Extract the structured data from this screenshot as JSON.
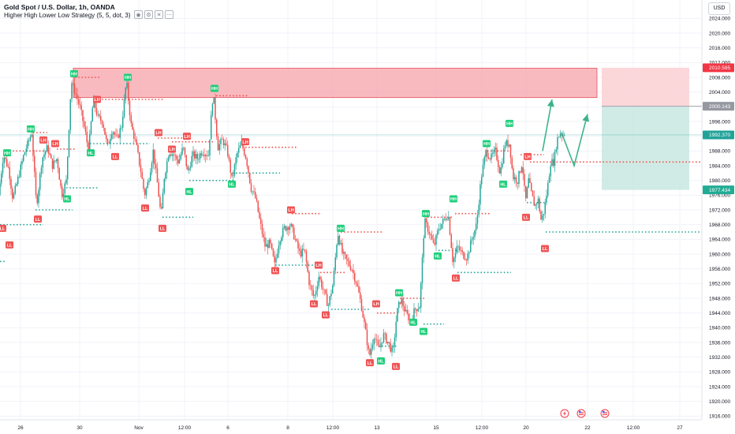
{
  "header": {
    "title": "Gold Spot / U.S. Dollar, 1h, OANDA",
    "indicator": "Higher High Lower Low Strategy (5, 5, dot, 3)"
  },
  "currency_button": "USD",
  "colors": {
    "up": "#26a69a",
    "down": "#ef5350",
    "resistance_zone": "#f7a3aa",
    "stop_zone": "#fbd0d4",
    "target_zone": "#c8e8e0",
    "arrow": "#3cb38a",
    "hh_badge": "#1fcf7a",
    "ll_badge": "#f05454",
    "last_price_badge": "#22a39a"
  },
  "icons": [
    "eye-icon",
    "gear-icon",
    "close-icon",
    "more-icon",
    "flash-icon",
    "us-flag-icon"
  ],
  "chart_data": {
    "type": "candlestick",
    "symbol": "Gold Spot / U.S. Dollar",
    "interval": "1h",
    "y_axis": {
      "ticks": [
        1916,
        1920,
        1924,
        1928,
        1932,
        1936,
        1940,
        1944,
        1948,
        1952,
        1956,
        1960,
        1964,
        1968,
        1972,
        1976,
        1980,
        1984,
        1988,
        1992,
        1996,
        2000,
        2004,
        2008,
        2012,
        2016,
        2020,
        2024
      ],
      "tick_labels": [
        "1916.000",
        "1920.000",
        "1924.000",
        "1928.000",
        "1932.000",
        "1936.000",
        "1940.000",
        "1944.000",
        "1948.000",
        "1952.000",
        "1956.000",
        "1960.000",
        "1964.000",
        "1968.000",
        "1972.000",
        "1976.000",
        "1980.000",
        "1984.000",
        "1988.000",
        "1992.000",
        "1996.000",
        "2000.000",
        "2004.000",
        "2008.000",
        "2012.000",
        "2016.000",
        "2020.000",
        "2024.000"
      ],
      "range": [
        1915,
        2029
      ]
    },
    "x_axis": {
      "labels": [
        {
          "text": "26",
          "t": 26
        },
        {
          "text": "30",
          "t": 101
        },
        {
          "text": "Nov",
          "t": 176
        },
        {
          "text": "12:00",
          "t": 234
        },
        {
          "text": "6",
          "t": 289
        },
        {
          "text": "8",
          "t": 365
        },
        {
          "text": "12:00",
          "t": 422
        },
        {
          "text": "13",
          "t": 478
        },
        {
          "text": "15",
          "t": 553
        },
        {
          "text": "12:00",
          "t": 611
        },
        {
          "text": "20",
          "t": 667
        },
        {
          "text": "22",
          "t": 745
        },
        {
          "text": "12:00",
          "t": 803
        },
        {
          "text": "27",
          "t": 862
        }
      ],
      "range": [
        0,
        890
      ]
    },
    "price_path": [
      [
        0,
        1976
      ],
      [
        6,
        1987
      ],
      [
        13,
        1983
      ],
      [
        18,
        1975
      ],
      [
        24,
        1980
      ],
      [
        32,
        1987
      ],
      [
        37,
        1990
      ],
      [
        42,
        1993
      ],
      [
        48,
        1973
      ],
      [
        55,
        1986
      ],
      [
        62,
        1989
      ],
      [
        68,
        1984
      ],
      [
        74,
        1986
      ],
      [
        80,
        1976
      ],
      [
        86,
        1980
      ],
      [
        92,
        2007
      ],
      [
        97,
        2004
      ],
      [
        103,
        2000
      ],
      [
        110,
        1993
      ],
      [
        114,
        1988
      ],
      [
        120,
        2002
      ],
      [
        126,
        1997
      ],
      [
        132,
        1996
      ],
      [
        138,
        1989
      ],
      [
        144,
        1994
      ],
      [
        150,
        1991
      ],
      [
        156,
        1995
      ],
      [
        162,
        2007
      ],
      [
        168,
        1995
      ],
      [
        174,
        1990
      ],
      [
        180,
        1983
      ],
      [
        185,
        1976
      ],
      [
        190,
        1980
      ],
      [
        196,
        1988
      ],
      [
        202,
        1978
      ],
      [
        206,
        1970
      ],
      [
        210,
        1981
      ],
      [
        216,
        1988
      ],
      [
        222,
        1987
      ],
      [
        228,
        1985
      ],
      [
        234,
        1989
      ],
      [
        240,
        1982
      ],
      [
        246,
        1987
      ],
      [
        252,
        1986
      ],
      [
        258,
        1988
      ],
      [
        266,
        1987
      ],
      [
        272,
        2004
      ],
      [
        278,
        1989
      ],
      [
        284,
        1991
      ],
      [
        290,
        1988
      ],
      [
        296,
        1980
      ],
      [
        302,
        1987
      ],
      [
        308,
        1990
      ],
      [
        314,
        1986
      ],
      [
        320,
        1978
      ],
      [
        326,
        1975
      ],
      [
        332,
        1968
      ],
      [
        338,
        1962
      ],
      [
        344,
        1963
      ],
      [
        350,
        1957
      ],
      [
        356,
        1964
      ],
      [
        362,
        1967
      ],
      [
        370,
        1968
      ],
      [
        376,
        1964
      ],
      [
        382,
        1960
      ],
      [
        388,
        1961
      ],
      [
        394,
        1952
      ],
      [
        400,
        1948
      ],
      [
        406,
        1954
      ],
      [
        412,
        1950
      ],
      [
        418,
        1946
      ],
      [
        424,
        1952
      ],
      [
        430,
        1966
      ],
      [
        436,
        1960
      ],
      [
        442,
        1958
      ],
      [
        448,
        1956
      ],
      [
        454,
        1952
      ],
      [
        460,
        1946
      ],
      [
        466,
        1938
      ],
      [
        470,
        1932
      ],
      [
        476,
        1938
      ],
      [
        482,
        1934
      ],
      [
        488,
        1938
      ],
      [
        494,
        1936
      ],
      [
        500,
        1933
      ],
      [
        505,
        1944
      ],
      [
        510,
        1948
      ],
      [
        516,
        1944
      ],
      [
        522,
        1942
      ],
      [
        528,
        1945
      ],
      [
        534,
        1946
      ],
      [
        540,
        1969
      ],
      [
        546,
        1966
      ],
      [
        552,
        1962
      ],
      [
        558,
        1967
      ],
      [
        564,
        1969
      ],
      [
        570,
        1971
      ],
      [
        576,
        1958
      ],
      [
        582,
        1962
      ],
      [
        588,
        1960
      ],
      [
        594,
        1959
      ],
      [
        600,
        1964
      ],
      [
        606,
        1968
      ],
      [
        612,
        1981
      ],
      [
        618,
        1988
      ],
      [
        624,
        1986
      ],
      [
        630,
        1988
      ],
      [
        636,
        1982
      ],
      [
        642,
        1990
      ],
      [
        648,
        1990
      ],
      [
        652,
        1981
      ],
      [
        658,
        1980
      ],
      [
        664,
        1985
      ],
      [
        668,
        1974
      ],
      [
        672,
        1980
      ],
      [
        676,
        1976
      ],
      [
        680,
        1973
      ],
      [
        684,
        1975
      ],
      [
        688,
        1969
      ],
      [
        692,
        1972
      ],
      [
        696,
        1978
      ],
      [
        700,
        1985
      ],
      [
        704,
        1985
      ],
      [
        708,
        1991
      ],
      [
        712,
        1993
      ],
      [
        716,
        1992.37
      ]
    ],
    "pivot_labels": [
      {
        "text": "HH",
        "t": 9,
        "price": 1987.5,
        "side": "above"
      },
      {
        "text": "LL",
        "t": 3,
        "price": 1967,
        "side": "below"
      },
      {
        "text": "LL",
        "t": 12,
        "price": 1962.5,
        "side": "below"
      },
      {
        "text": "HH",
        "t": 39,
        "price": 1994,
        "side": "above"
      },
      {
        "text": "LH",
        "t": 55,
        "price": 1991,
        "side": "above"
      },
      {
        "text": "LH",
        "t": 70,
        "price": 1990,
        "side": "above"
      },
      {
        "text": "LL",
        "t": 48,
        "price": 1969.5,
        "side": "below"
      },
      {
        "text": "HL",
        "t": 85,
        "price": 1975,
        "side": "below"
      },
      {
        "text": "HH",
        "t": 94,
        "price": 2009,
        "side": "above"
      },
      {
        "text": "LH",
        "t": 123,
        "price": 2002,
        "side": "above"
      },
      {
        "text": "HL",
        "t": 115,
        "price": 1987.5,
        "side": "below"
      },
      {
        "text": "HH",
        "t": 162,
        "price": 2008,
        "side": "above"
      },
      {
        "text": "LL",
        "t": 146,
        "price": 1986.5,
        "side": "below"
      },
      {
        "text": "LH",
        "t": 201,
        "price": 1993,
        "side": "above"
      },
      {
        "text": "LH",
        "t": 218,
        "price": 1988.5,
        "side": "above"
      },
      {
        "text": "LH",
        "t": 237,
        "price": 1992,
        "side": "above"
      },
      {
        "text": "LL",
        "t": 184,
        "price": 1972.5,
        "side": "below"
      },
      {
        "text": "LL",
        "t": 206,
        "price": 1967,
        "side": "below"
      },
      {
        "text": "HL",
        "t": 240,
        "price": 1977,
        "side": "below"
      },
      {
        "text": "HH",
        "t": 272,
        "price": 2005,
        "side": "above"
      },
      {
        "text": "HL",
        "t": 294,
        "price": 1979,
        "side": "below"
      },
      {
        "text": "LH",
        "t": 311,
        "price": 1990.5,
        "side": "above"
      },
      {
        "text": "LH",
        "t": 369,
        "price": 1972,
        "side": "above"
      },
      {
        "text": "LL",
        "t": 349,
        "price": 1955.5,
        "side": "below"
      },
      {
        "text": "HH",
        "t": 432,
        "price": 1967,
        "side": "above"
      },
      {
        "text": "LH",
        "t": 404,
        "price": 1957,
        "side": "above"
      },
      {
        "text": "LL",
        "t": 398,
        "price": 1946.5,
        "side": "below"
      },
      {
        "text": "LL",
        "t": 413,
        "price": 1943.5,
        "side": "below"
      },
      {
        "text": "LH",
        "t": 477,
        "price": 1946.5,
        "side": "above"
      },
      {
        "text": "HH",
        "t": 506,
        "price": 1949.5,
        "side": "above"
      },
      {
        "text": "LL",
        "t": 469,
        "price": 1930.5,
        "side": "below"
      },
      {
        "text": "HL",
        "t": 483,
        "price": 1931,
        "side": "below"
      },
      {
        "text": "LL",
        "t": 502,
        "price": 1929.5,
        "side": "below"
      },
      {
        "text": "HL",
        "t": 524,
        "price": 1941.5,
        "side": "below"
      },
      {
        "text": "HL",
        "t": 537,
        "price": 1939,
        "side": "below"
      },
      {
        "text": "HH",
        "t": 540,
        "price": 1971,
        "side": "above"
      },
      {
        "text": "HL",
        "t": 555,
        "price": 1959.5,
        "side": "below"
      },
      {
        "text": "HH",
        "t": 575,
        "price": 1975,
        "side": "above"
      },
      {
        "text": "LL",
        "t": 578,
        "price": 1953.5,
        "side": "below"
      },
      {
        "text": "HH",
        "t": 617,
        "price": 1990,
        "side": "above"
      },
      {
        "text": "HH",
        "t": 646,
        "price": 1995.5,
        "side": "above"
      },
      {
        "text": "HL",
        "t": 638,
        "price": 1979,
        "side": "below"
      },
      {
        "text": "LH",
        "t": 669,
        "price": 1986.5,
        "side": "above"
      },
      {
        "text": "LL",
        "t": 667,
        "price": 1970,
        "side": "below"
      },
      {
        "text": "LL",
        "t": 691,
        "price": 1961.5,
        "side": "below"
      }
    ],
    "dotted_levels": [
      {
        "price": 1988,
        "t0": 12,
        "t1": 62,
        "color": "red"
      },
      {
        "price": 1968,
        "t0": 0,
        "t1": 55,
        "color": "green"
      },
      {
        "price": 1993,
        "t0": 42,
        "t1": 60,
        "color": "red"
      },
      {
        "price": 1972,
        "t0": 45,
        "t1": 92,
        "color": "green"
      },
      {
        "price": 1988.5,
        "t0": 72,
        "t1": 96,
        "color": "red"
      },
      {
        "price": 1978,
        "t0": 84,
        "t1": 124,
        "color": "green"
      },
      {
        "price": 2008,
        "t0": 95,
        "t1": 128,
        "color": "red"
      },
      {
        "price": 2002,
        "t0": 125,
        "t1": 208,
        "color": "red"
      },
      {
        "price": 1990,
        "t0": 114,
        "t1": 190,
        "color": "green"
      },
      {
        "price": 1991.5,
        "t0": 200,
        "t1": 240,
        "color": "red"
      },
      {
        "price": 1990.5,
        "t0": 218,
        "t1": 270,
        "color": "red"
      },
      {
        "price": 1970,
        "t0": 206,
        "t1": 245,
        "color": "green"
      },
      {
        "price": 1980,
        "t0": 240,
        "t1": 298,
        "color": "green"
      },
      {
        "price": 2003,
        "t0": 274,
        "t1": 316,
        "color": "red"
      },
      {
        "price": 1989,
        "t0": 311,
        "t1": 376,
        "color": "red"
      },
      {
        "price": 1982,
        "t0": 295,
        "t1": 355,
        "color": "green"
      },
      {
        "price": 1971,
        "t0": 370,
        "t1": 408,
        "color": "red"
      },
      {
        "price": 1957,
        "t0": 349,
        "t1": 404,
        "color": "green"
      },
      {
        "price": 1966,
        "t0": 432,
        "t1": 485,
        "color": "red"
      },
      {
        "price": 1955,
        "t0": 406,
        "t1": 438,
        "color": "red"
      },
      {
        "price": 1945,
        "t0": 420,
        "t1": 470,
        "color": "green"
      },
      {
        "price": 1944,
        "t0": 478,
        "t1": 505,
        "color": "red"
      },
      {
        "price": 1948,
        "t0": 507,
        "t1": 540,
        "color": "red"
      },
      {
        "price": 1935,
        "t0": 484,
        "t1": 503,
        "color": "green"
      },
      {
        "price": 1941,
        "t0": 537,
        "t1": 563,
        "color": "green"
      },
      {
        "price": 1970,
        "t0": 542,
        "t1": 575,
        "color": "red"
      },
      {
        "price": 1961,
        "t0": 556,
        "t1": 580,
        "color": "green"
      },
      {
        "price": 1955,
        "t0": 580,
        "t1": 648,
        "color": "green"
      },
      {
        "price": 1971,
        "t0": 577,
        "t1": 622,
        "color": "red"
      },
      {
        "price": 1988,
        "t0": 618,
        "t1": 648,
        "color": "red"
      },
      {
        "price": 1987,
        "t0": 660,
        "t1": 690,
        "color": "red"
      },
      {
        "price": 1974,
        "t0": 668,
        "t1": 692,
        "color": "green"
      },
      {
        "price": 1985,
        "t0": 672,
        "t1": 900,
        "color": "red"
      },
      {
        "price": 1966,
        "t0": 692,
        "t1": 900,
        "color": "green"
      },
      {
        "price": 1958,
        "t0": 0,
        "t1": 8,
        "color": "green"
      }
    ],
    "resistance_zone": {
      "t0": 93,
      "t1": 757,
      "price_top": 2010.5,
      "price_bottom": 2002.5
    },
    "position_box": {
      "t0": 763,
      "t1": 874,
      "stop": 2010.595,
      "entry": 2000.143,
      "target": 1977.434
    },
    "current_price": 1992.37,
    "price_labels": [
      {
        "text": "2010.595",
        "price": 2010.595,
        "kind": "stop"
      },
      {
        "text": "2000.143",
        "price": 2000.143,
        "kind": "entry"
      },
      {
        "text": "1992.370",
        "price": 1992.37,
        "kind": "last"
      },
      {
        "text": "1977.434",
        "price": 1977.434,
        "kind": "target"
      }
    ],
    "arrows": [
      {
        "points": [
          [
            688,
            1988
          ],
          [
            700,
            2002
          ]
        ],
        "head": true
      },
      {
        "points": [
          [
            712,
            1993
          ],
          [
            728,
            1984
          ],
          [
            745,
            1998
          ]
        ],
        "head": true
      }
    ],
    "event_markers": [
      {
        "icon": "flash-icon",
        "t": 716
      },
      {
        "icon": "us-flag-icon",
        "t": 737
      },
      {
        "icon": "us-flag-icon",
        "t": 767
      }
    ],
    "grid": true,
    "legend_position": "top-left"
  }
}
